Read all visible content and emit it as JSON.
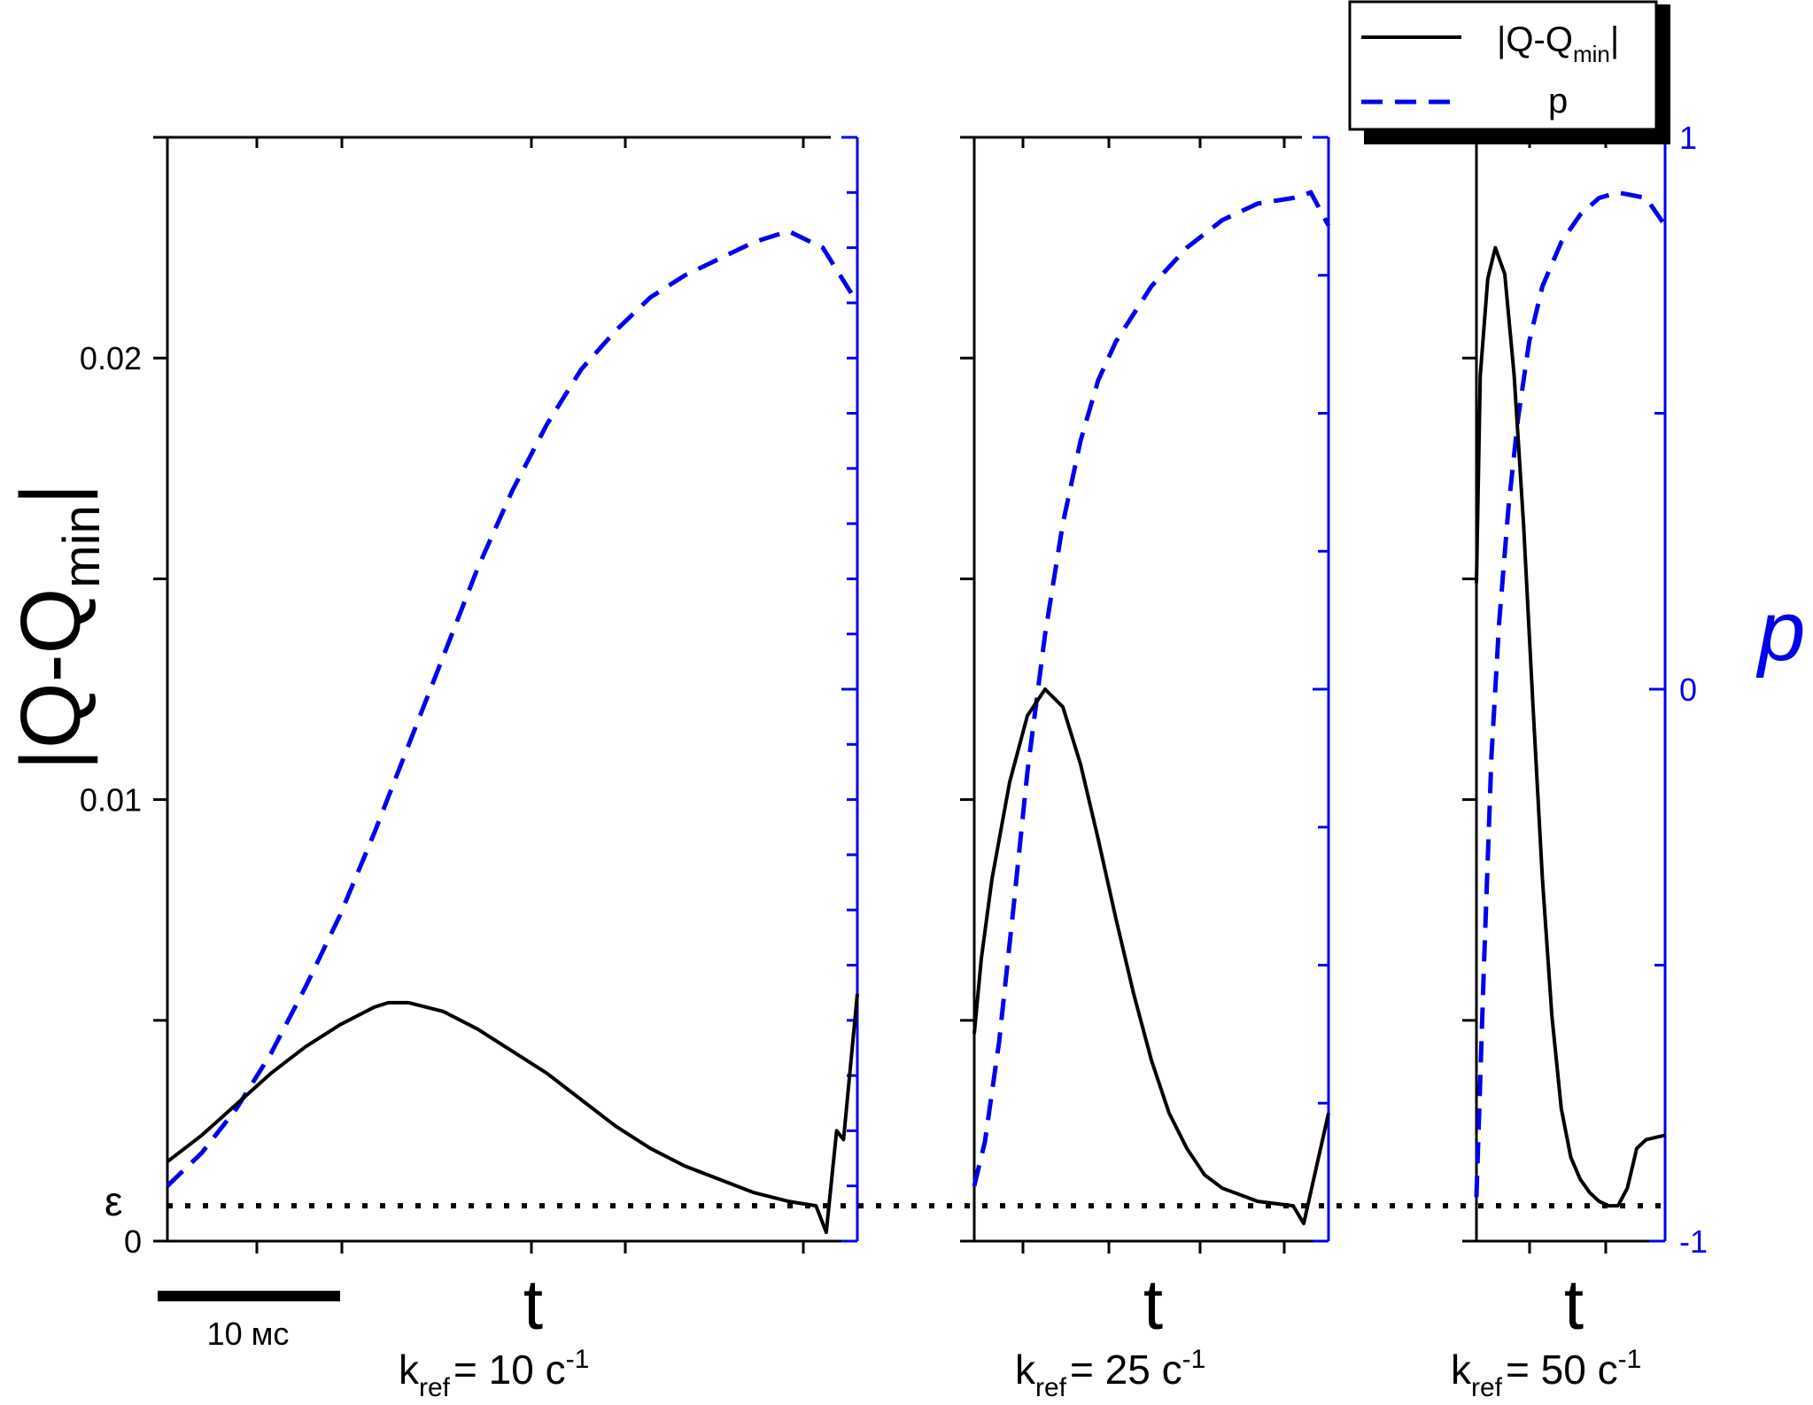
{
  "chart_data": {
    "type": "line",
    "y_left_label": "|Q-Q",
    "y_left_label_sub": "min",
    "y_left_label_close": "|",
    "y_right_label": "p",
    "y_left_ticks": [
      "0.02",
      "0.01",
      "0"
    ],
    "y_right_ticks": [
      "1",
      "0",
      "-1"
    ],
    "ylim_left": [
      0,
      0.025
    ],
    "ylim_right": [
      -1,
      1
    ],
    "epsilon_label": "ε",
    "epsilon_value": 0.0008,
    "scale_bar_label": "10 мс",
    "legend": {
      "placement": "top-right",
      "entries": [
        {
          "name": "|Q-Q",
          "sub": "min",
          "close": "|",
          "style": "solid",
          "color": "#000000"
        },
        {
          "name": "p",
          "sub": "",
          "close": "",
          "style": "dashed",
          "color": "#0000ee"
        }
      ]
    },
    "panels": [
      {
        "x_label": "t",
        "caption_k": "k",
        "caption_sub": "ref",
        "caption_eq": "= 10 с",
        "caption_sup": "-1",
        "xlim": [
          0,
          1
        ],
        "Q": [
          [
            0,
            0.0018
          ],
          [
            0.05,
            0.0024
          ],
          [
            0.1,
            0.0031
          ],
          [
            0.15,
            0.0038
          ],
          [
            0.2,
            0.0044
          ],
          [
            0.25,
            0.0049
          ],
          [
            0.3,
            0.0053
          ],
          [
            0.32,
            0.0054
          ],
          [
            0.35,
            0.0054
          ],
          [
            0.4,
            0.0052
          ],
          [
            0.45,
            0.0048
          ],
          [
            0.5,
            0.0043
          ],
          [
            0.55,
            0.0038
          ],
          [
            0.6,
            0.0032
          ],
          [
            0.65,
            0.0026
          ],
          [
            0.7,
            0.0021
          ],
          [
            0.75,
            0.0017
          ],
          [
            0.8,
            0.0014
          ],
          [
            0.85,
            0.0011
          ],
          [
            0.9,
            0.0009
          ],
          [
            0.94,
            0.0008
          ],
          [
            0.955,
            0.0002
          ],
          [
            0.97,
            0.0025
          ],
          [
            0.98,
            0.0023
          ],
          [
            1.0,
            0.0056
          ]
        ],
        "p": [
          [
            0,
            -0.9
          ],
          [
            0.05,
            -0.84
          ],
          [
            0.1,
            -0.76
          ],
          [
            0.15,
            -0.66
          ],
          [
            0.2,
            -0.54
          ],
          [
            0.25,
            -0.41
          ],
          [
            0.3,
            -0.26
          ],
          [
            0.35,
            -0.1
          ],
          [
            0.4,
            0.06
          ],
          [
            0.45,
            0.22
          ],
          [
            0.5,
            0.36
          ],
          [
            0.55,
            0.48
          ],
          [
            0.6,
            0.58
          ],
          [
            0.65,
            0.65
          ],
          [
            0.7,
            0.71
          ],
          [
            0.75,
            0.75
          ],
          [
            0.8,
            0.78
          ],
          [
            0.85,
            0.81
          ],
          [
            0.9,
            0.83
          ],
          [
            0.95,
            0.8
          ],
          [
            1.0,
            0.7
          ]
        ]
      },
      {
        "x_label": "t",
        "caption_k": "k",
        "caption_sub": "ref",
        "caption_eq": "= 25 с",
        "caption_sup": "-1",
        "xlim": [
          0,
          1
        ],
        "Q": [
          [
            0,
            0.0047
          ],
          [
            0.02,
            0.0064
          ],
          [
            0.05,
            0.0082
          ],
          [
            0.1,
            0.0104
          ],
          [
            0.15,
            0.0119
          ],
          [
            0.2,
            0.0125
          ],
          [
            0.25,
            0.0121
          ],
          [
            0.3,
            0.0108
          ],
          [
            0.35,
            0.0091
          ],
          [
            0.4,
            0.0073
          ],
          [
            0.45,
            0.0056
          ],
          [
            0.5,
            0.0041
          ],
          [
            0.55,
            0.0029
          ],
          [
            0.6,
            0.0021
          ],
          [
            0.65,
            0.0015
          ],
          [
            0.7,
            0.0012
          ],
          [
            0.8,
            0.0009
          ],
          [
            0.9,
            0.0008
          ],
          [
            0.93,
            0.0004
          ],
          [
            1.0,
            0.0029
          ]
        ],
        "p": [
          [
            0,
            -0.9
          ],
          [
            0.03,
            -0.82
          ],
          [
            0.07,
            -0.64
          ],
          [
            0.11,
            -0.4
          ],
          [
            0.15,
            -0.15
          ],
          [
            0.2,
            0.1
          ],
          [
            0.25,
            0.3
          ],
          [
            0.3,
            0.45
          ],
          [
            0.35,
            0.56
          ],
          [
            0.4,
            0.63
          ],
          [
            0.5,
            0.73
          ],
          [
            0.6,
            0.8
          ],
          [
            0.7,
            0.85
          ],
          [
            0.8,
            0.88
          ],
          [
            0.9,
            0.89
          ],
          [
            0.95,
            0.9
          ],
          [
            1.0,
            0.84
          ]
        ]
      },
      {
        "x_label": "t",
        "caption_k": "k",
        "caption_sub": "ref",
        "caption_eq": "= 50 с",
        "caption_sup": "-1",
        "xlim": [
          0,
          1
        ],
        "Q": [
          [
            0,
            0.0149
          ],
          [
            0.02,
            0.0196
          ],
          [
            0.06,
            0.0218
          ],
          [
            0.1,
            0.0225
          ],
          [
            0.15,
            0.0219
          ],
          [
            0.2,
            0.0196
          ],
          [
            0.25,
            0.0162
          ],
          [
            0.3,
            0.0121
          ],
          [
            0.35,
            0.0082
          ],
          [
            0.4,
            0.0051
          ],
          [
            0.45,
            0.003
          ],
          [
            0.5,
            0.0019
          ],
          [
            0.55,
            0.0014
          ],
          [
            0.6,
            0.0011
          ],
          [
            0.65,
            0.0009
          ],
          [
            0.7,
            0.0008
          ],
          [
            0.75,
            0.0008
          ],
          [
            0.8,
            0.0012
          ],
          [
            0.85,
            0.0021
          ],
          [
            0.9,
            0.0023
          ],
          [
            1.0,
            0.0024
          ]
        ],
        "p": [
          [
            0,
            -0.92
          ],
          [
            0.04,
            -0.5
          ],
          [
            0.08,
            -0.12
          ],
          [
            0.12,
            0.12
          ],
          [
            0.17,
            0.33
          ],
          [
            0.22,
            0.49
          ],
          [
            0.28,
            0.63
          ],
          [
            0.35,
            0.73
          ],
          [
            0.45,
            0.81
          ],
          [
            0.55,
            0.86
          ],
          [
            0.65,
            0.89
          ],
          [
            0.75,
            0.9
          ],
          [
            0.9,
            0.89
          ],
          [
            1.0,
            0.84
          ]
        ]
      }
    ]
  }
}
